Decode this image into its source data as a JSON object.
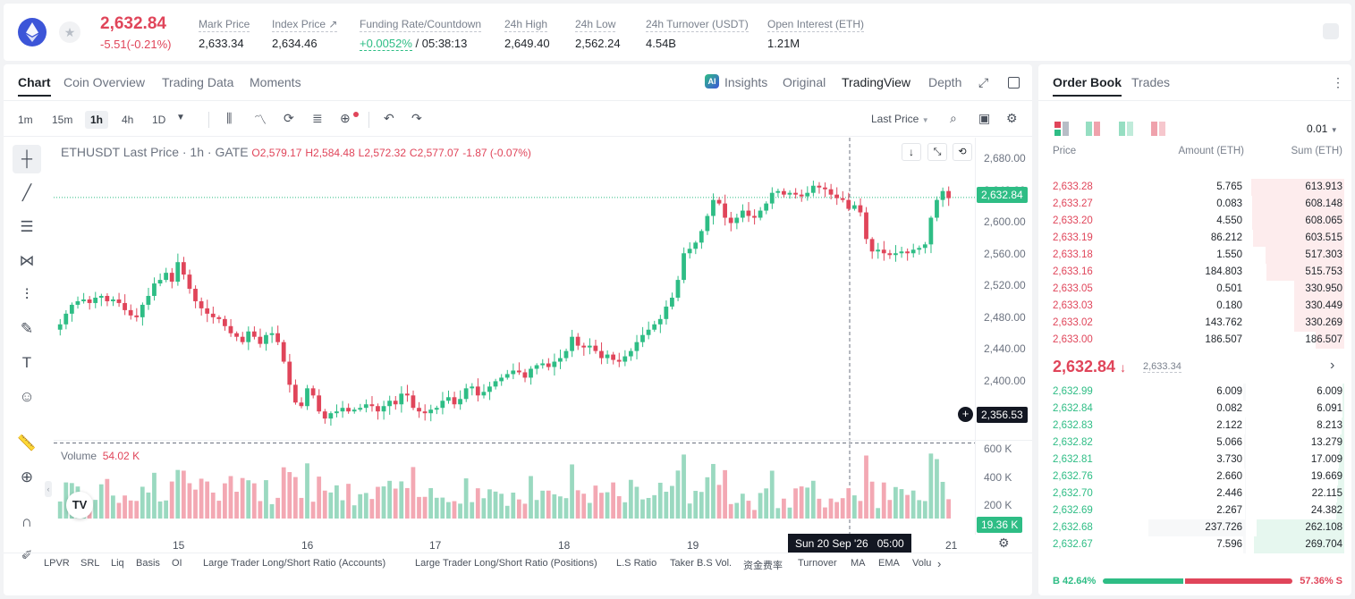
{
  "header": {
    "last_price": "2,632.84",
    "change": "-5.51(-0.21%)",
    "stats": [
      {
        "label": "Mark Price",
        "value": "2,633.34"
      },
      {
        "label": "Index Price ↗",
        "value": "2,634.46"
      },
      {
        "label": "Funding Rate/Countdown",
        "value_green": "+0.0052%",
        "value_rest": " / 05:38:13"
      },
      {
        "label": "24h High",
        "value": "2,649.40"
      },
      {
        "label": "24h Low",
        "value": "2,562.24"
      },
      {
        "label": "24h Turnover (USDT)",
        "value": "4.54B"
      },
      {
        "label": "Open Interest (ETH)",
        "value": "1.21M"
      }
    ]
  },
  "chart_tabs": [
    "Chart",
    "Coin Overview",
    "Trading Data",
    "Moments"
  ],
  "view_tabs": [
    "Insights",
    "Original",
    "TradingView",
    "Depth"
  ],
  "timeframes": [
    "1m",
    "15m",
    "1h",
    "4h",
    "1D"
  ],
  "price_type": "Last Price",
  "legend": {
    "symbol": "ETHUSDT Last Price · 1h · GATE",
    "o": "O2,579.17",
    "h": "H2,584.48",
    "l": "L2,572.32",
    "c": "C2,577.07",
    "chg": "-1.87 (-0.07%)"
  },
  "volume_legend": {
    "label": "Volume",
    "value": "54.02 K"
  },
  "y_ticks": [
    "2,680.00",
    "2,640.00",
    "2,600.00",
    "2,560.00",
    "2,520.00",
    "2,480.00",
    "2,440.00",
    "2,400.00"
  ],
  "vol_ticks": [
    "600 K",
    "400 K",
    "200 K"
  ],
  "x_ticks": [
    "15",
    "16",
    "17",
    "18",
    "19",
    "21"
  ],
  "current_price_tag": "2,632.84",
  "cursor_price_tag": "2,356.53",
  "volume_tag": "19.36 K",
  "cursor_time_tag": "Sun 20 Sep '26   05:00",
  "indicator_bar": [
    "LPVR",
    "SRL",
    "Liq",
    "Basis",
    "OI",
    "Large Trader Long/Short Ratio (Accounts)",
    "Large Trader Long/Short Ratio (Positions)",
    "L.S Ratio",
    "Taker B.S Vol.",
    "资金费率",
    "Turnover",
    "MA",
    "EMA",
    "Volu"
  ],
  "chart_data": {
    "type": "candlestick",
    "title": "ETHUSDT Last Price · 1h · GATE",
    "ylim": [
      2360,
      2690
    ],
    "x_ticks": [
      "15",
      "16",
      "17",
      "18",
      "19",
      "21"
    ],
    "closes": [
      2490,
      2502,
      2512,
      2516,
      2518,
      2514,
      2520,
      2522,
      2516,
      2518,
      2514,
      2506,
      2500,
      2498,
      2512,
      2522,
      2536,
      2540,
      2548,
      2538,
      2560,
      2546,
      2530,
      2516,
      2508,
      2502,
      2498,
      2496,
      2488,
      2480,
      2476,
      2470,
      2482,
      2476,
      2468,
      2478,
      2480,
      2470,
      2448,
      2422,
      2402,
      2398,
      2418,
      2410,
      2392,
      2384,
      2390,
      2392,
      2396,
      2392,
      2394,
      2396,
      2400,
      2398,
      2392,
      2398,
      2404,
      2400,
      2412,
      2410,
      2396,
      2392,
      2390,
      2394,
      2396,
      2404,
      2408,
      2400,
      2406,
      2418,
      2420,
      2410,
      2414,
      2420,
      2426,
      2430,
      2434,
      2438,
      2436,
      2430,
      2440,
      2444,
      2446,
      2442,
      2448,
      2452,
      2460,
      2476,
      2466,
      2464,
      2466,
      2460,
      2452,
      2456,
      2450,
      2448,
      2454,
      2460,
      2470,
      2478,
      2484,
      2490,
      2496,
      2510,
      2520,
      2540,
      2570,
      2575,
      2582,
      2595,
      2612,
      2630,
      2626,
      2610,
      2604,
      2610,
      2618,
      2612,
      2610,
      2618,
      2626,
      2638,
      2640,
      2636,
      2638,
      2636,
      2634,
      2638,
      2646,
      2644,
      2642,
      2636,
      2632,
      2630,
      2620,
      2624,
      2616,
      2586,
      2572,
      2574,
      2570,
      2568,
      2570,
      2572,
      2570,
      2574,
      2576,
      2580,
      2610,
      2630,
      2640,
      2632
    ],
    "volume_ticks": [
      "600 K",
      "400 K",
      "200 K"
    ],
    "last_volume": "54.02 K"
  },
  "orderbook": {
    "tabs": [
      "Order Book",
      "Trades"
    ],
    "precision": "0.01",
    "headers": [
      "Price",
      "Amount (ETH)",
      "Sum (ETH)"
    ],
    "asks": [
      [
        "2,633.28",
        "5.765",
        "613.913"
      ],
      [
        "2,633.27",
        "0.083",
        "608.148"
      ],
      [
        "2,633.20",
        "4.550",
        "608.065"
      ],
      [
        "2,633.19",
        "86.212",
        "603.515"
      ],
      [
        "2,633.18",
        "1.550",
        "517.303"
      ],
      [
        "2,633.16",
        "184.803",
        "515.753"
      ],
      [
        "2,633.05",
        "0.501",
        "330.950"
      ],
      [
        "2,633.03",
        "0.180",
        "330.449"
      ],
      [
        "2,633.02",
        "143.762",
        "330.269"
      ],
      [
        "2,633.00",
        "186.507",
        "186.507"
      ]
    ],
    "mid_price": "2,632.84",
    "mid_mark": "2,633.34",
    "bids": [
      [
        "2,632.99",
        "6.009",
        "6.009"
      ],
      [
        "2,632.84",
        "0.082",
        "6.091"
      ],
      [
        "2,632.83",
        "2.122",
        "8.213"
      ],
      [
        "2,632.82",
        "5.066",
        "13.279"
      ],
      [
        "2,632.81",
        "3.730",
        "17.009"
      ],
      [
        "2,632.76",
        "2.660",
        "19.669"
      ],
      [
        "2,632.70",
        "2.446",
        "22.115"
      ],
      [
        "2,632.69",
        "2.267",
        "24.382"
      ],
      [
        "2,632.68",
        "237.726",
        "262.108"
      ],
      [
        "2,632.67",
        "7.596",
        "269.704"
      ]
    ],
    "buy_ratio": "B 42.64%",
    "sell_ratio": "57.36% S",
    "buy_fraction": 0.4264
  }
}
